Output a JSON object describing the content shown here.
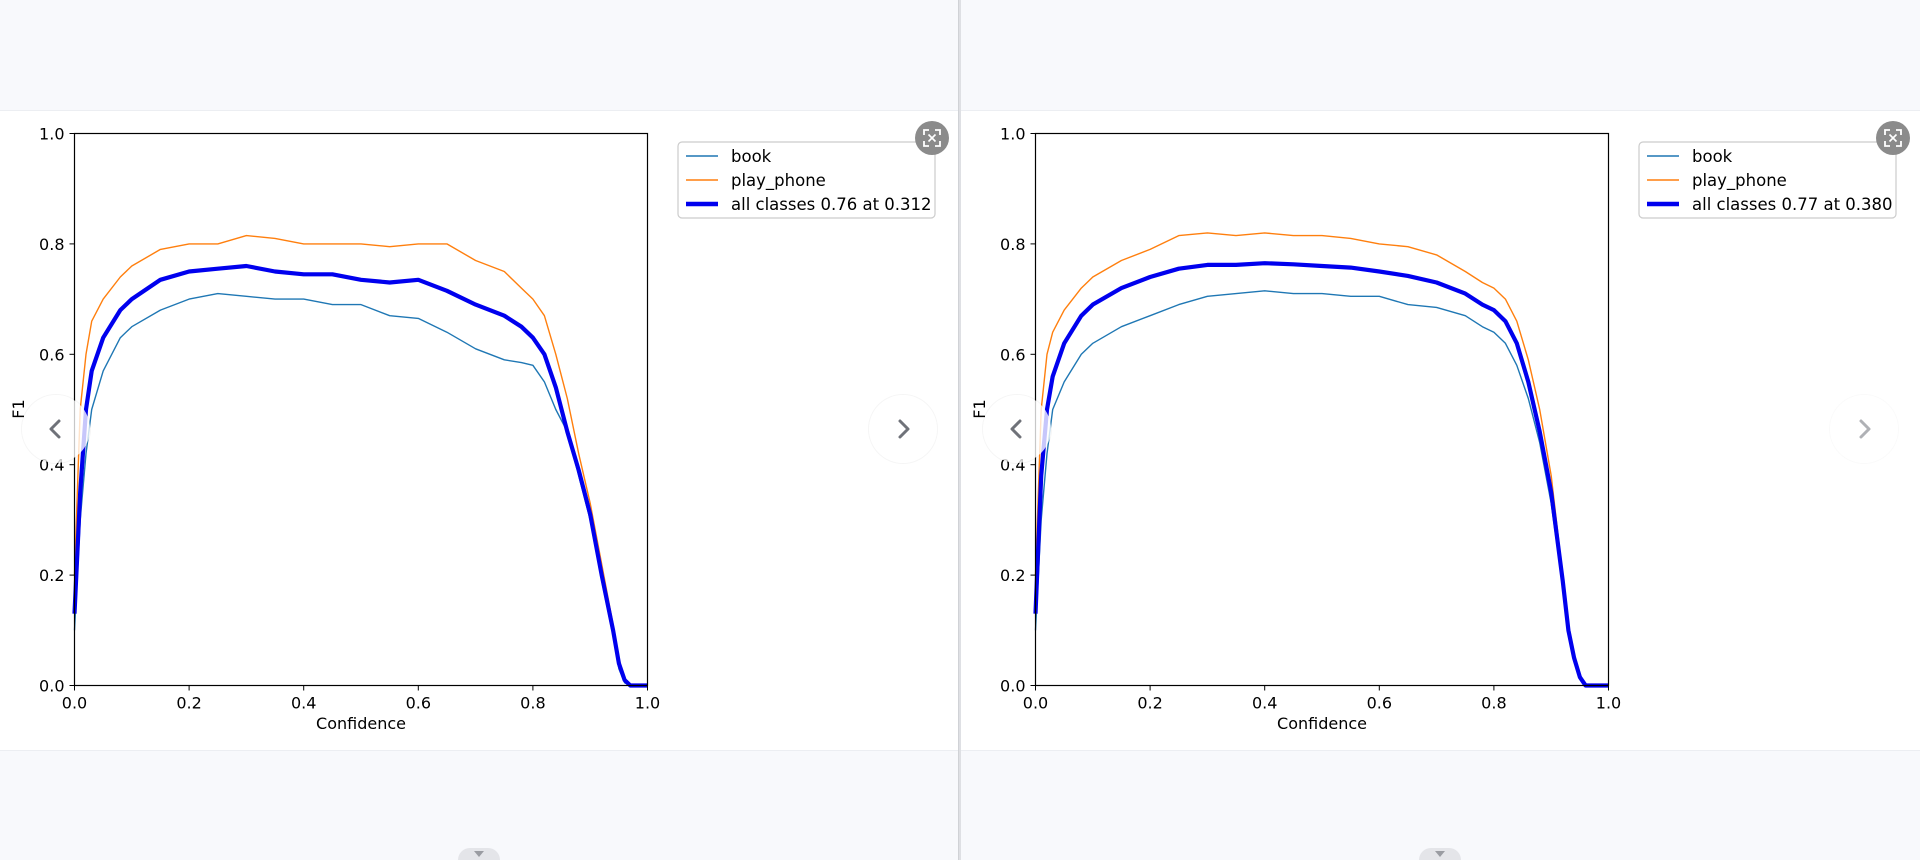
{
  "colors": {
    "book": "#1f77b4",
    "play_phone": "#ff7f0e",
    "all": "#0000ee",
    "background": "#f8f9fc",
    "button": "#8b8b8b"
  },
  "icons": {
    "expand": "expand-icon",
    "prev": "chevron-left-icon",
    "next": "chevron-right-icon",
    "handle": "caret-down-icon"
  },
  "chart_data": [
    {
      "type": "line",
      "title": "",
      "xlabel": "Confidence",
      "ylabel": "F1",
      "xlim": [
        0,
        1
      ],
      "ylim": [
        0,
        1
      ],
      "xticks": [
        "0.0",
        "0.2",
        "0.4",
        "0.6",
        "0.8",
        "1.0"
      ],
      "yticks": [
        "0.0",
        "0.2",
        "0.4",
        "0.6",
        "0.8",
        "1.0"
      ],
      "grid": false,
      "legend_position": "outside-right-top",
      "series": [
        {
          "name": "book",
          "x": [
            0,
            0.01,
            0.02,
            0.03,
            0.05,
            0.08,
            0.1,
            0.15,
            0.2,
            0.25,
            0.3,
            0.35,
            0.4,
            0.45,
            0.5,
            0.55,
            0.6,
            0.65,
            0.7,
            0.75,
            0.78,
            0.8,
            0.82,
            0.84,
            0.86,
            0.88,
            0.9,
            0.92,
            0.94,
            0.95,
            0.96,
            0.97,
            1.0
          ],
          "y": [
            0.1,
            0.3,
            0.42,
            0.5,
            0.57,
            0.63,
            0.65,
            0.68,
            0.7,
            0.71,
            0.705,
            0.7,
            0.7,
            0.69,
            0.69,
            0.67,
            0.665,
            0.64,
            0.61,
            0.59,
            0.585,
            0.58,
            0.55,
            0.5,
            0.46,
            0.38,
            0.3,
            0.19,
            0.09,
            0.03,
            0.005,
            0,
            0
          ]
        },
        {
          "name": "play_phone",
          "x": [
            0,
            0.01,
            0.02,
            0.03,
            0.05,
            0.08,
            0.1,
            0.15,
            0.2,
            0.25,
            0.3,
            0.35,
            0.4,
            0.45,
            0.5,
            0.55,
            0.6,
            0.65,
            0.7,
            0.75,
            0.78,
            0.8,
            0.82,
            0.84,
            0.86,
            0.88,
            0.9,
            0.92,
            0.94,
            0.95,
            0.96,
            0.97,
            1.0
          ],
          "y": [
            0.2,
            0.5,
            0.6,
            0.66,
            0.7,
            0.74,
            0.76,
            0.79,
            0.8,
            0.8,
            0.815,
            0.81,
            0.8,
            0.8,
            0.8,
            0.795,
            0.8,
            0.8,
            0.77,
            0.75,
            0.72,
            0.7,
            0.67,
            0.6,
            0.52,
            0.42,
            0.33,
            0.22,
            0.11,
            0.05,
            0.01,
            0,
            0
          ]
        },
        {
          "name": "all classes 0.76 at 0.312",
          "x": [
            0,
            0.01,
            0.02,
            0.03,
            0.05,
            0.08,
            0.1,
            0.15,
            0.2,
            0.25,
            0.3,
            0.35,
            0.4,
            0.45,
            0.5,
            0.55,
            0.6,
            0.65,
            0.7,
            0.75,
            0.78,
            0.8,
            0.82,
            0.84,
            0.86,
            0.88,
            0.9,
            0.92,
            0.94,
            0.95,
            0.96,
            0.97,
            1.0
          ],
          "y": [
            0.13,
            0.35,
            0.5,
            0.57,
            0.63,
            0.68,
            0.7,
            0.735,
            0.75,
            0.755,
            0.76,
            0.75,
            0.745,
            0.745,
            0.735,
            0.73,
            0.735,
            0.715,
            0.69,
            0.67,
            0.65,
            0.63,
            0.6,
            0.54,
            0.46,
            0.39,
            0.31,
            0.2,
            0.1,
            0.04,
            0.01,
            0,
            0
          ]
        }
      ]
    },
    {
      "type": "line",
      "title": "",
      "xlabel": "Confidence",
      "ylabel": "F1",
      "xlim": [
        0,
        1
      ],
      "ylim": [
        0,
        1
      ],
      "xticks": [
        "0.0",
        "0.2",
        "0.4",
        "0.6",
        "0.8",
        "1.0"
      ],
      "yticks": [
        "0.0",
        "0.2",
        "0.4",
        "0.6",
        "0.8",
        "1.0"
      ],
      "grid": false,
      "legend_position": "outside-right-top",
      "series": [
        {
          "name": "book",
          "x": [
            0,
            0.01,
            0.02,
            0.03,
            0.05,
            0.08,
            0.1,
            0.15,
            0.2,
            0.25,
            0.3,
            0.35,
            0.4,
            0.45,
            0.5,
            0.55,
            0.6,
            0.65,
            0.7,
            0.75,
            0.78,
            0.8,
            0.82,
            0.84,
            0.86,
            0.88,
            0.9,
            0.92,
            0.93,
            0.94,
            0.95,
            0.96,
            1.0
          ],
          "y": [
            0.1,
            0.3,
            0.42,
            0.5,
            0.55,
            0.6,
            0.62,
            0.65,
            0.67,
            0.69,
            0.705,
            0.71,
            0.715,
            0.71,
            0.71,
            0.705,
            0.705,
            0.69,
            0.685,
            0.67,
            0.65,
            0.64,
            0.62,
            0.58,
            0.52,
            0.44,
            0.33,
            0.18,
            0.1,
            0.05,
            0.02,
            0,
            0
          ]
        },
        {
          "name": "play_phone",
          "x": [
            0,
            0.01,
            0.02,
            0.03,
            0.05,
            0.08,
            0.1,
            0.15,
            0.2,
            0.25,
            0.3,
            0.35,
            0.4,
            0.45,
            0.5,
            0.55,
            0.6,
            0.65,
            0.7,
            0.75,
            0.78,
            0.8,
            0.82,
            0.84,
            0.86,
            0.88,
            0.9,
            0.92,
            0.93,
            0.94,
            0.95,
            0.96,
            1.0
          ],
          "y": [
            0.2,
            0.5,
            0.6,
            0.64,
            0.68,
            0.72,
            0.74,
            0.77,
            0.79,
            0.815,
            0.82,
            0.815,
            0.82,
            0.815,
            0.815,
            0.81,
            0.8,
            0.795,
            0.78,
            0.75,
            0.73,
            0.72,
            0.7,
            0.66,
            0.59,
            0.5,
            0.38,
            0.2,
            0.11,
            0.05,
            0.02,
            0,
            0
          ]
        },
        {
          "name": "all classes 0.77 at 0.380",
          "x": [
            0,
            0.01,
            0.02,
            0.03,
            0.05,
            0.08,
            0.1,
            0.15,
            0.2,
            0.25,
            0.3,
            0.35,
            0.4,
            0.45,
            0.5,
            0.55,
            0.6,
            0.65,
            0.7,
            0.75,
            0.78,
            0.8,
            0.82,
            0.84,
            0.86,
            0.88,
            0.9,
            0.92,
            0.93,
            0.94,
            0.95,
            0.96,
            1.0
          ],
          "y": [
            0.13,
            0.38,
            0.5,
            0.56,
            0.62,
            0.67,
            0.69,
            0.72,
            0.74,
            0.755,
            0.762,
            0.762,
            0.765,
            0.763,
            0.76,
            0.757,
            0.75,
            0.742,
            0.73,
            0.71,
            0.69,
            0.68,
            0.66,
            0.62,
            0.55,
            0.46,
            0.35,
            0.19,
            0.1,
            0.05,
            0.015,
            0,
            0
          ]
        }
      ]
    }
  ]
}
